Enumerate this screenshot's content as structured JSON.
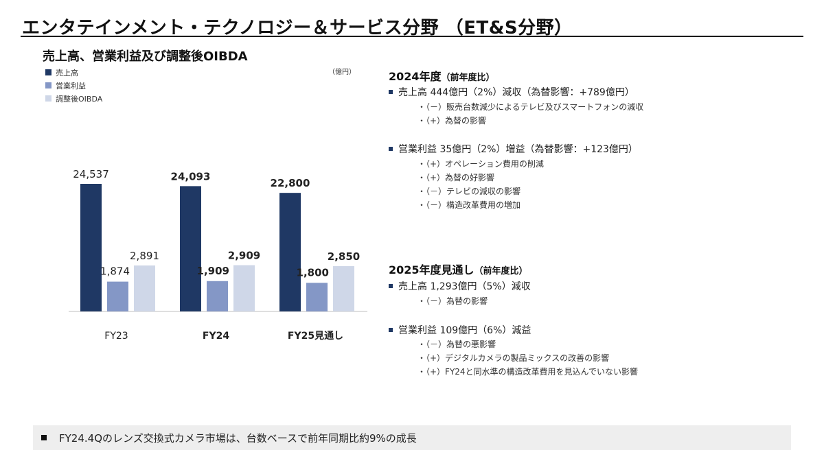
{
  "page": {
    "title": "エンタテインメント・テクノロジー＆サービス分野 （ET&S分野）"
  },
  "chart_data": {
    "type": "bar",
    "title": "売上高、営業利益及び調整後OIBDA",
    "unit": "（億円）",
    "categories": [
      "FY23",
      "FY24",
      "FY25見通し"
    ],
    "category_bold": [
      false,
      true,
      true
    ],
    "series": [
      {
        "name": "売上高",
        "color": "#1f3864",
        "values": [
          24537,
          24093,
          22800
        ],
        "labels": [
          "24,537",
          "24,093",
          "22,800"
        ]
      },
      {
        "name": "営業利益",
        "color": "#8497c6",
        "values": [
          1874,
          1909,
          1800
        ],
        "labels": [
          "1,874",
          "1,909",
          "1,800"
        ]
      },
      {
        "name": "調整後OIBDA",
        "color": "#cfd7e8",
        "values": [
          2891,
          2909,
          2850
        ],
        "labels": [
          "2,891",
          "2,909",
          "2,850"
        ]
      }
    ],
    "legend": "top-left"
  },
  "fy2024": {
    "heading": "2024年度",
    "heading_sub": "（前年度比）",
    "sales": {
      "text": "売上高 444億円（2%）減収（為替影響：+789億円）",
      "items": [
        "・（－）販売台数減少によるテレビ及びスマートフォンの減収",
        "・（+）為替の影響"
      ]
    },
    "op": {
      "text": "営業利益 35億円（2%）増益（為替影響：+123億円）",
      "items": [
        "・（+）オペレーション費用の削減",
        "・（+）為替の好影響",
        "・（－）テレビの減収の影響",
        "・（－）構造改革費用の増加"
      ]
    }
  },
  "fy2025": {
    "heading": "2025年度見通し",
    "heading_sub": "（前年度比）",
    "sales": {
      "text": "売上高 1,293億円（5%）減収",
      "items": [
        "・（－）為替の影響"
      ]
    },
    "op": {
      "text": "営業利益 109億円（6%）減益",
      "items": [
        "・（－）為替の悪影響",
        "・（+）デジタルカメラの製品ミックスの改善の影響",
        "・（+）FY24と同水準の構造改革費用を見込んでいない影響"
      ]
    }
  },
  "footer": {
    "text": "FY24.4Qのレンズ交換式カメラ市場は、台数ベースで前年同期比約9%の成長"
  }
}
